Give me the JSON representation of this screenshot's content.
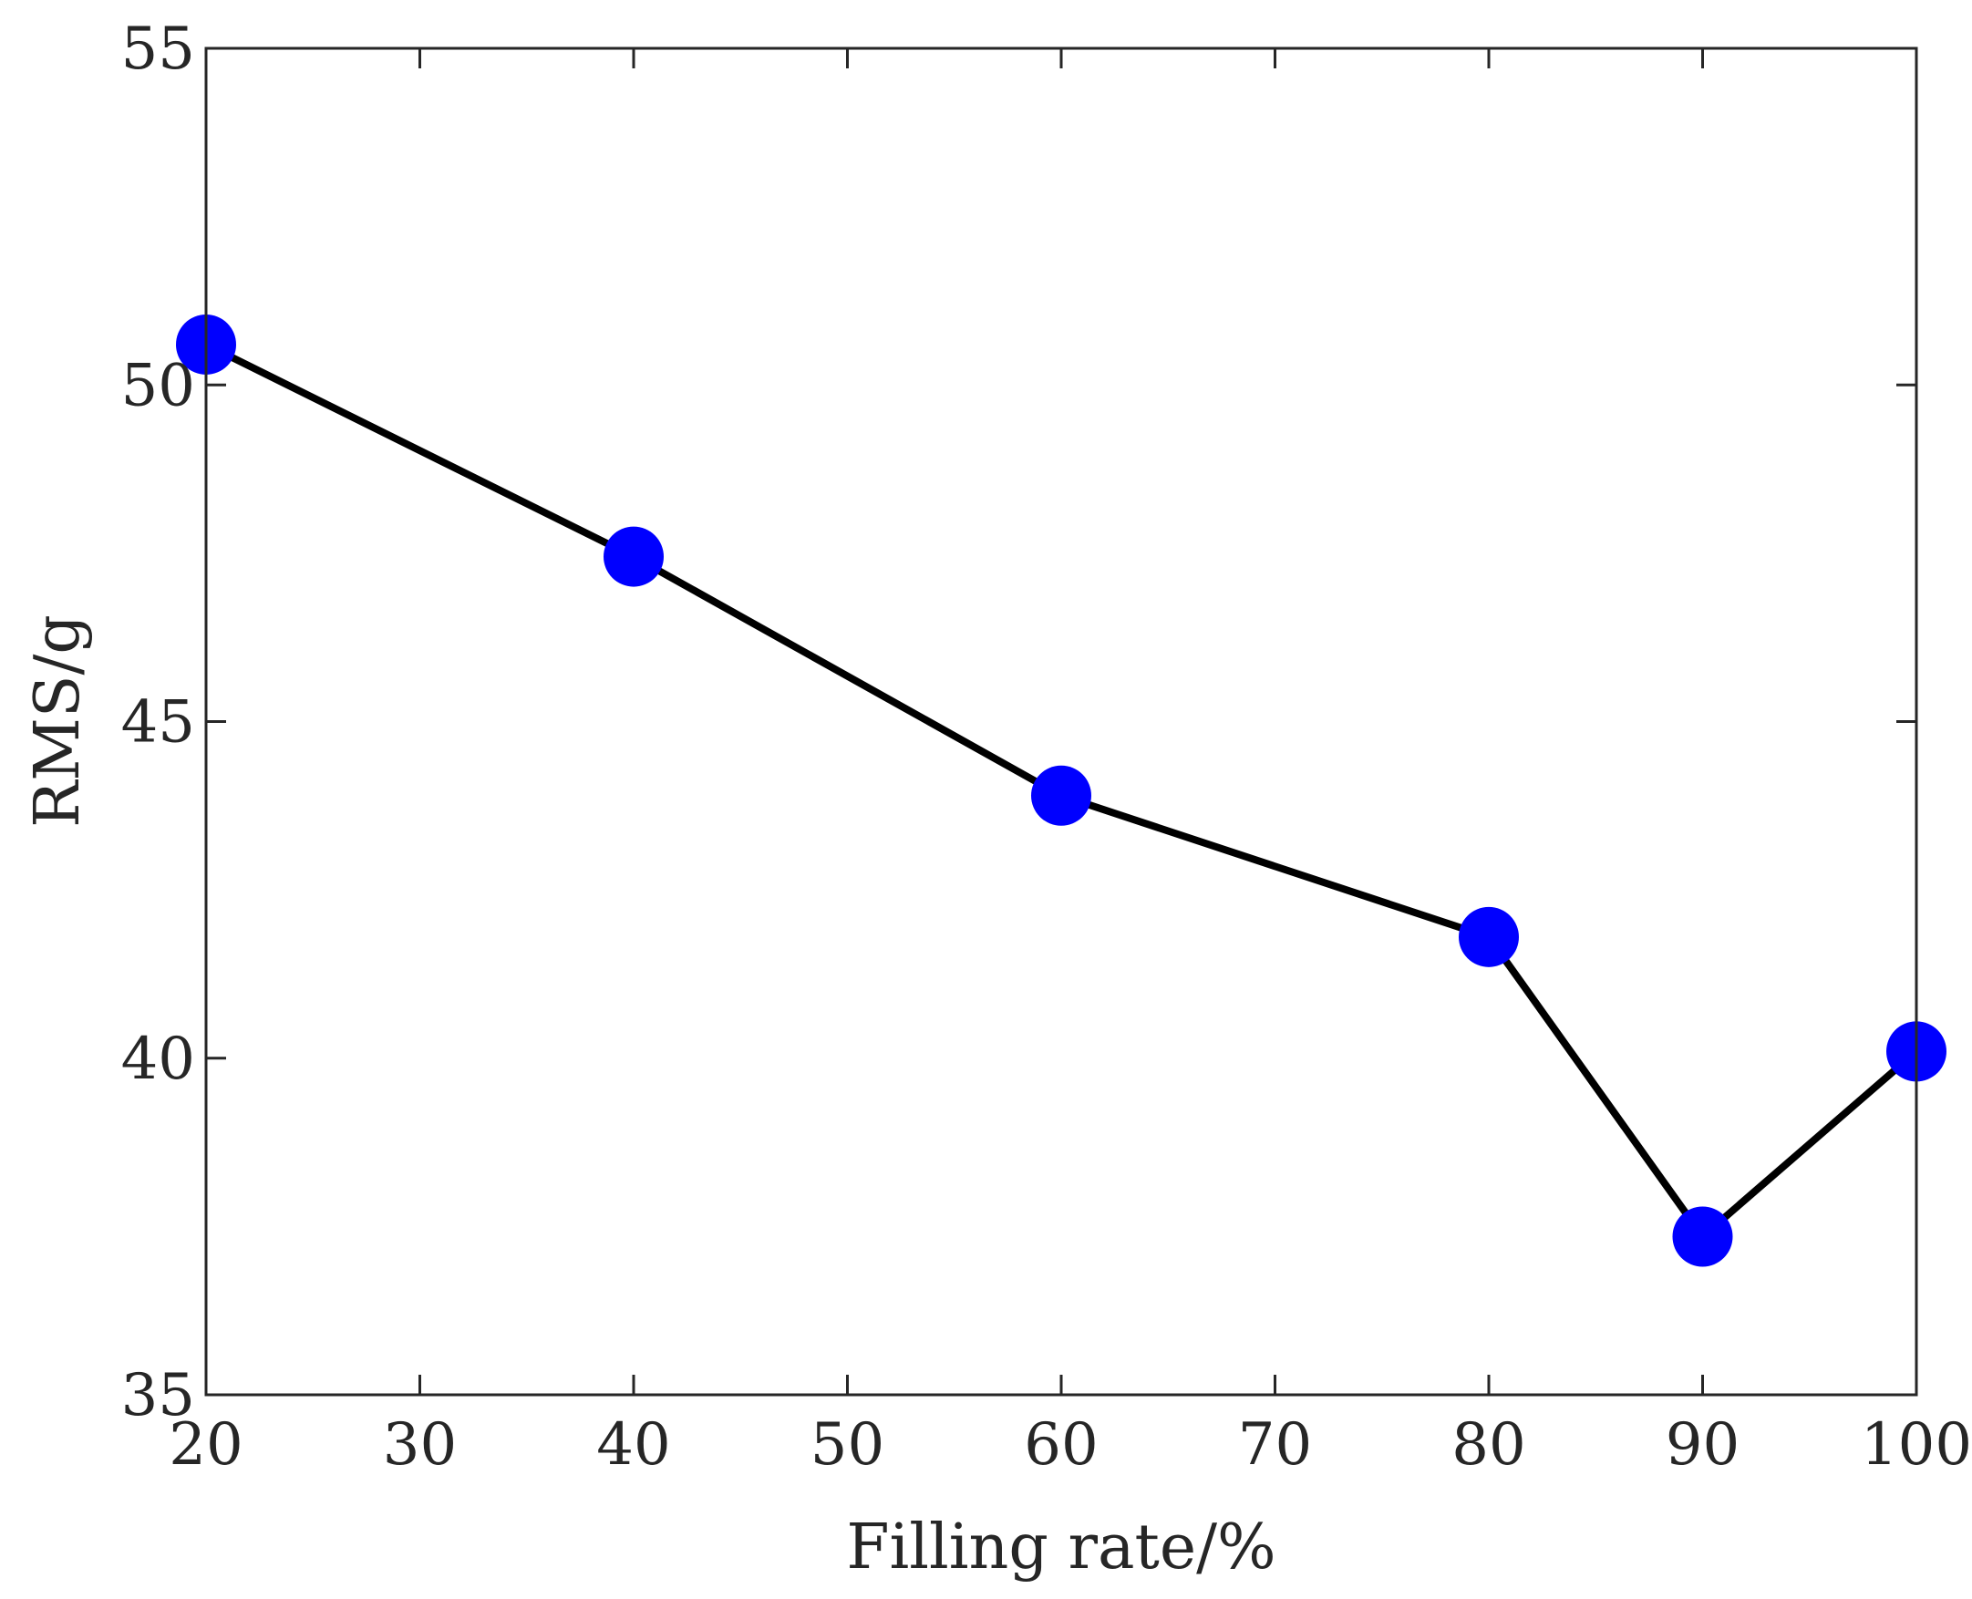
{
  "chart_data": {
    "type": "line",
    "title": "",
    "xlabel": "Filling rate/%",
    "ylabel": "RMS/g",
    "xlim": [
      20,
      100
    ],
    "ylim": [
      35,
      55
    ],
    "xticks": [
      20,
      30,
      40,
      50,
      60,
      70,
      80,
      90,
      100
    ],
    "yticks": [
      35,
      40,
      45,
      50,
      55
    ],
    "grid": false,
    "legend": "none",
    "series": [
      {
        "x": [
          20,
          40,
          60,
          80,
          90,
          100
        ],
        "y": [
          50.6,
          47.45,
          43.9,
          41.8,
          37.35,
          40.1
        ],
        "line_color": "#000000",
        "marker_color": "#0000ff"
      }
    ]
  }
}
